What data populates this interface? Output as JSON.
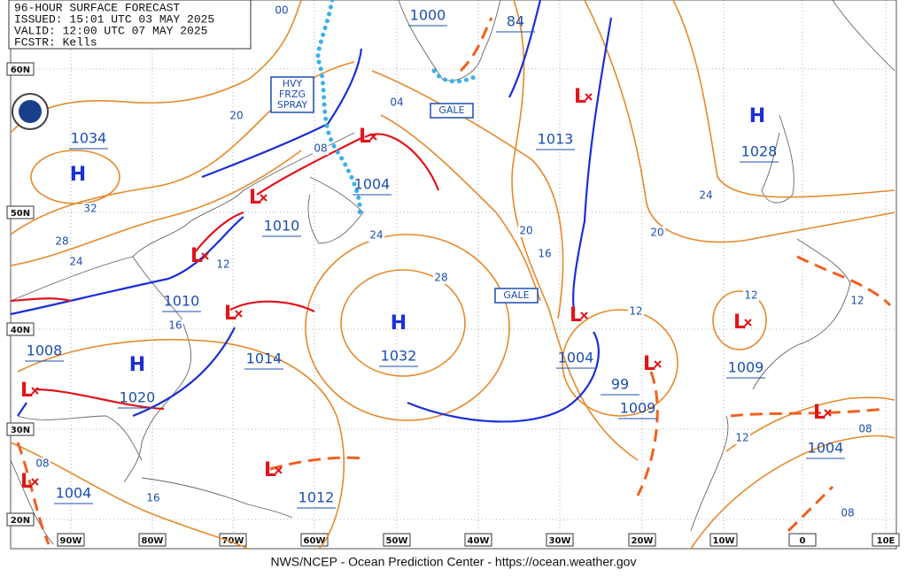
{
  "header": {
    "title": "96-HOUR SURFACE FORECAST",
    "issued": "ISSUED: 15:01 UTC 03 MAY 2025",
    "valid": "VALID: 12:00 UTC 07 MAY 2025",
    "forecaster": "FCSTR:  Kells"
  },
  "grid": {
    "lat_labels": [
      "60N",
      "50N",
      "40N",
      "30N",
      "20N"
    ],
    "lon_labels": [
      "90W",
      "80W",
      "70W",
      "60W",
      "50W",
      "40W",
      "30W",
      "20W",
      "10W",
      "0",
      "10E"
    ]
  },
  "centers": [
    "H",
    "H",
    "H",
    "H",
    "L",
    "L",
    "L",
    "L",
    "L",
    "L",
    "L",
    "L",
    "L",
    "L",
    "L",
    "L"
  ],
  "pressure_labels": [
    "1034",
    "1010",
    "1010",
    "1008",
    "1020",
    "1014",
    "1004",
    "1032",
    "1013",
    "1000",
    "84",
    "1004",
    "99",
    "1009",
    "1028",
    "1009",
    "1004",
    "1004",
    "1012"
  ],
  "isobar_labels": [
    "00",
    "04",
    "08",
    "20",
    "32",
    "28",
    "24",
    "12",
    "16",
    "24",
    "28",
    "20",
    "16",
    "12",
    "20",
    "24",
    "12",
    "12",
    "08",
    "12",
    "08",
    "16",
    "08"
  ],
  "boxes": [
    {
      "lines": [
        "HVY",
        "FRZG",
        "SPRAY"
      ]
    },
    {
      "lines": [
        "GALE"
      ]
    },
    {
      "lines": [
        "GALE"
      ]
    }
  ],
  "footer": "NWS/NCEP - Ocean Prediction Center - https://ocean.weather.gov"
}
